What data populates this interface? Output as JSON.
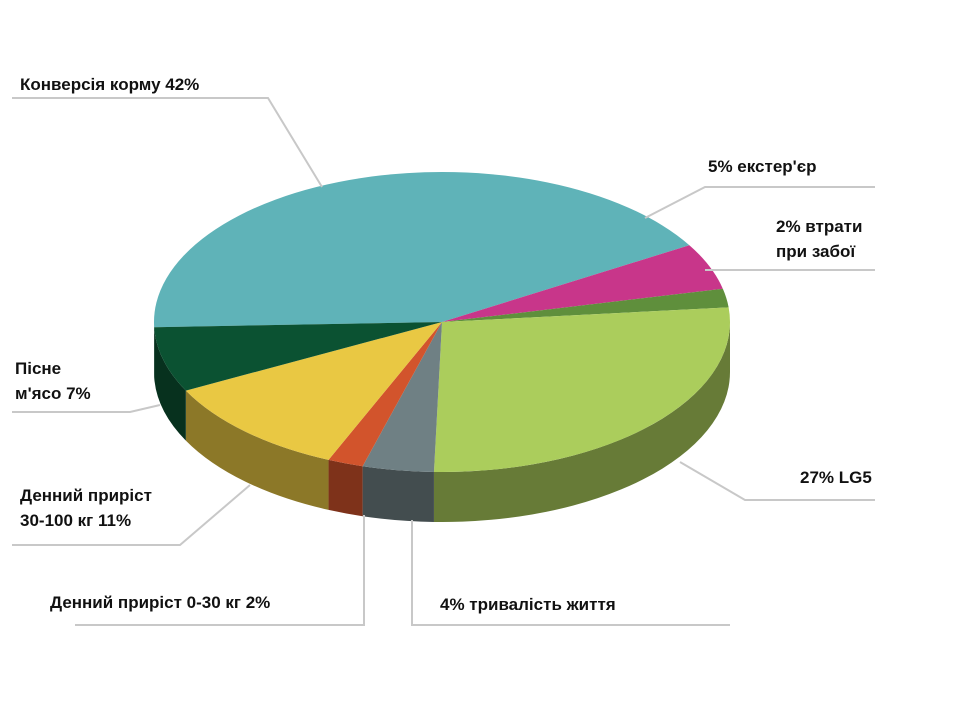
{
  "chart_data": {
    "type": "pie3d",
    "categories": [
      "Конверсія корму 42%",
      "5% екстер'єр",
      "2% втрати\nпри забої",
      "27% LG5",
      "4% тривалість життя",
      "Денний приріст 0-30 кг 2%",
      "Денний приріст\n30-100 кг 11%",
      "Пісне\nм'ясо 7%"
    ],
    "values": [
      42,
      5,
      2,
      27,
      4,
      2,
      11,
      7
    ],
    "colors": [
      "#5fb3b8",
      "#c8368a",
      "#5f8f3c",
      "#abcd5c",
      "#6f8084",
      "#d2542c",
      "#e9c843",
      "#0b5232"
    ]
  }
}
